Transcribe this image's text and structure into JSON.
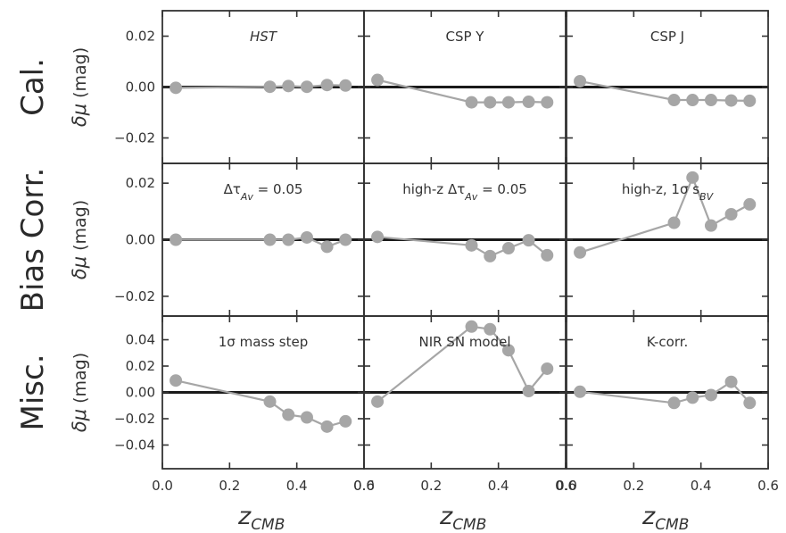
{
  "colors": {
    "marker": "#a6a6a6",
    "line": "#a6a6a6",
    "zero": "#1a1a1a",
    "frame": "#333333"
  },
  "row_labels": [
    "Cal.",
    "Bias Corr.",
    "Misc."
  ],
  "ylabel": {
    "main": "δμ",
    "unit": "(mag)"
  },
  "xlabel": {
    "main": "z",
    "sub": "CMB"
  },
  "x_tick_labels": [
    "0.0",
    "0.2",
    "0.4",
    "0.6"
  ],
  "y_tick_labels": {
    "small": [
      "0.02",
      "0.00",
      "−0.02"
    ],
    "misc": [
      "0.04",
      "0.02",
      "0.00",
      "−0.02",
      "−0.04"
    ]
  },
  "chart_data": {
    "type": "line",
    "x": [
      0.04,
      0.32,
      0.375,
      0.43,
      0.49,
      0.545
    ],
    "xlim": [
      0.0,
      0.6
    ],
    "x_ticks": [
      0.0,
      0.2,
      0.4,
      0.6
    ],
    "xlabel": "z_CMB",
    "ylabel": "δμ (mag)",
    "rows": [
      {
        "label": "Cal.",
        "ylim": [
          -0.03,
          0.03
        ],
        "y_ticks": [
          0.02,
          0.0,
          -0.02
        ]
      },
      {
        "label": "Bias Corr.",
        "ylim": [
          -0.027,
          0.027
        ],
        "y_ticks": [
          0.02,
          0.0,
          -0.02
        ]
      },
      {
        "label": "Misc.",
        "ylim": [
          -0.058,
          0.058
        ],
        "y_ticks": [
          0.04,
          0.02,
          0.0,
          -0.02,
          -0.04
        ]
      }
    ],
    "panels": [
      {
        "row": 0,
        "col": 0,
        "title": "HST",
        "italic": true,
        "values": [
          -0.0003,
          0.0001,
          0.0004,
          0.0001,
          0.0008,
          0.0006
        ]
      },
      {
        "row": 0,
        "col": 1,
        "title": "CSP Y",
        "italic": false,
        "values": [
          0.0028,
          -0.006,
          -0.006,
          -0.006,
          -0.0058,
          -0.006
        ]
      },
      {
        "row": 0,
        "col": 2,
        "title": "CSP J",
        "italic": false,
        "values": [
          0.0023,
          -0.0051,
          -0.0051,
          -0.0051,
          -0.0053,
          -0.0054
        ]
      },
      {
        "row": 1,
        "col": 0,
        "title": "Δτ_Av = 0.05",
        "italic": false,
        "values": [
          0.0,
          0.0,
          0.0,
          0.0008,
          -0.0025,
          0.0
        ]
      },
      {
        "row": 1,
        "col": 1,
        "title": "high-z Δτ_Av = 0.05",
        "italic": false,
        "values": [
          0.001,
          -0.002,
          -0.0058,
          -0.003,
          -0.0002,
          -0.0055
        ]
      },
      {
        "row": 1,
        "col": 2,
        "title": "high-z, 1σ s_BV",
        "italic": false,
        "values": [
          -0.0045,
          0.006,
          0.022,
          0.005,
          0.009,
          0.0125
        ]
      },
      {
        "row": 2,
        "col": 0,
        "title": "1σ mass step",
        "italic": false,
        "values": [
          0.009,
          -0.007,
          -0.017,
          -0.019,
          -0.026,
          -0.022
        ]
      },
      {
        "row": 2,
        "col": 1,
        "title": "NIR SN model",
        "italic": false,
        "values": [
          -0.007,
          0.05,
          0.048,
          0.032,
          0.001,
          0.018
        ]
      },
      {
        "row": 2,
        "col": 2,
        "title": "K-corr.",
        "italic": false,
        "values": [
          0.0005,
          -0.008,
          -0.004,
          -0.002,
          0.008,
          -0.008
        ]
      }
    ]
  }
}
